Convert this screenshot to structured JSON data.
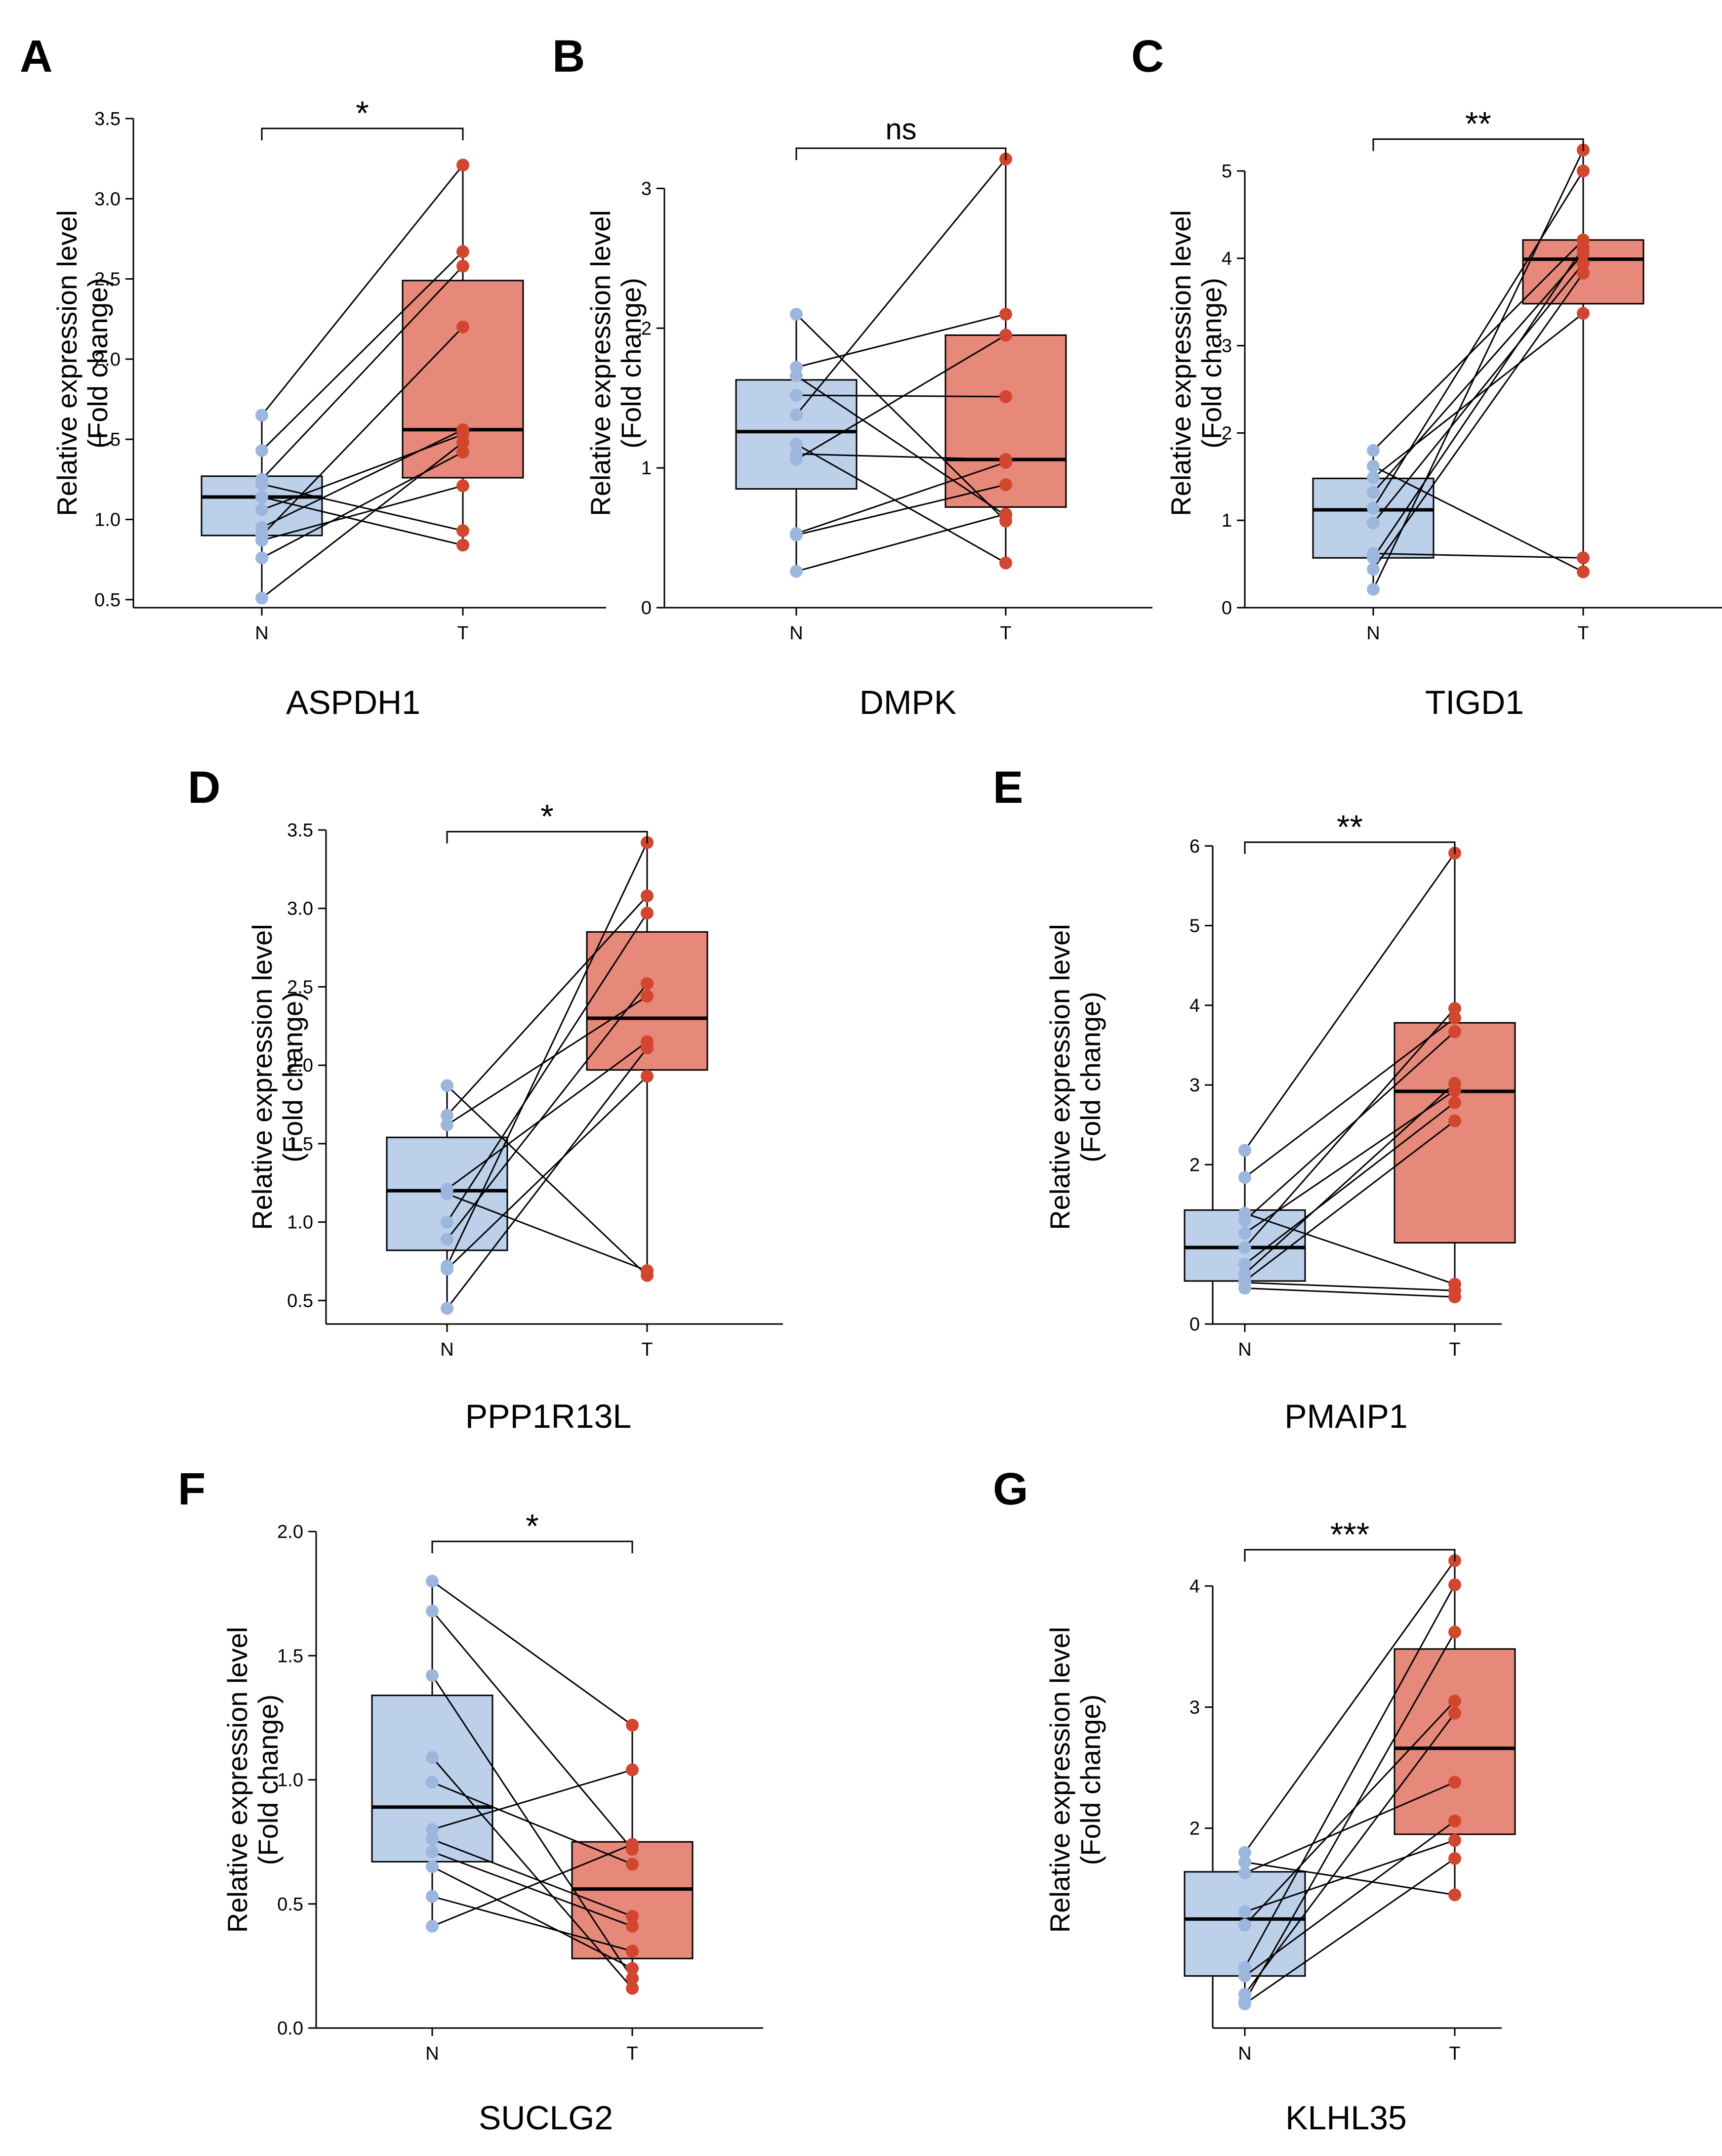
{
  "chart_data": [
    {
      "panel": "A",
      "type": "box",
      "gene": "ASPDH1",
      "ylabel": [
        "Relative expression level",
        "(Fold change)"
      ],
      "categories": [
        "N",
        "T"
      ],
      "significance": "*",
      "ylim": [
        0.45,
        3.5
      ],
      "yticks": [
        0.5,
        1.0,
        1.5,
        2.0,
        2.5,
        3.0,
        3.5
      ],
      "tick_decimals": 1,
      "boxes": [
        {
          "group": "N",
          "q1": 0.9,
          "median": 1.14,
          "q3": 1.27,
          "whisker_low": 0.51,
          "whisker_high": 1.65
        },
        {
          "group": "T",
          "q1": 1.26,
          "median": 1.56,
          "q3": 2.49,
          "whisker_low": 0.84,
          "whisker_high": 3.21
        }
      ],
      "pairs": [
        [
          1.65,
          3.21
        ],
        [
          1.43,
          2.67
        ],
        [
          1.25,
          2.58
        ],
        [
          1.22,
          0.93
        ],
        [
          1.14,
          0.84
        ],
        [
          1.06,
          1.53
        ],
        [
          0.95,
          1.56
        ],
        [
          0.9,
          2.2
        ],
        [
          0.87,
          1.21
        ],
        [
          0.76,
          1.42
        ],
        [
          0.51,
          1.48
        ]
      ]
    },
    {
      "panel": "B",
      "type": "box",
      "gene": "DMPK",
      "ylabel": [
        "Relative expression level",
        "(Fold change)"
      ],
      "categories": [
        "N",
        "T"
      ],
      "significance": "ns",
      "ylim": [
        0.0,
        3.5
      ],
      "yticks": [
        0,
        1,
        2,
        3
      ],
      "tick_decimals": 0,
      "boxes": [
        {
          "group": "N",
          "q1": 0.85,
          "median": 1.26,
          "q3": 1.63,
          "whisker_low": 0.26,
          "whisker_high": 2.1
        },
        {
          "group": "T",
          "q1": 0.72,
          "median": 1.06,
          "q3": 1.95,
          "whisker_low": 0.32,
          "whisker_high": 3.21
        }
      ],
      "pairs": [
        [
          2.1,
          0.62
        ],
        [
          1.72,
          2.1
        ],
        [
          1.66,
          0.66
        ],
        [
          1.52,
          1.51
        ],
        [
          1.38,
          3.21
        ],
        [
          1.17,
          0.32
        ],
        [
          1.1,
          1.06
        ],
        [
          1.06,
          1.95
        ],
        [
          0.53,
          1.04
        ],
        [
          0.52,
          0.88
        ],
        [
          0.26,
          0.67
        ]
      ]
    },
    {
      "panel": "C",
      "type": "box",
      "gene": "TIGD1",
      "ylabel": [
        "Relative expression level",
        "(Fold change)"
      ],
      "categories": [
        "N",
        "T"
      ],
      "significance": "**",
      "ylim": [
        0.0,
        5.6
      ],
      "yticks": [
        0,
        1,
        2,
        3,
        4,
        5
      ],
      "tick_decimals": 0,
      "boxes": [
        {
          "group": "N",
          "q1": 0.57,
          "median": 1.12,
          "q3": 1.48,
          "whisker_low": 0.21,
          "whisker_high": 1.8
        },
        {
          "group": "T",
          "q1": 3.48,
          "median": 3.99,
          "q3": 4.21,
          "whisker_low": 0.41,
          "whisker_high": 5.24
        }
      ],
      "pairs": [
        [
          1.8,
          4.21
        ],
        [
          1.62,
          0.41
        ],
        [
          1.49,
          3.37
        ],
        [
          1.32,
          4.05
        ],
        [
          1.14,
          5.0
        ],
        [
          0.97,
          3.94
        ],
        [
          0.62,
          0.57
        ],
        [
          0.57,
          4.12
        ],
        [
          0.44,
          3.83
        ],
        [
          0.21,
          5.24
        ]
      ]
    },
    {
      "panel": "D",
      "type": "box",
      "gene": "PPP1R13L",
      "ylabel": [
        "Relative expression level",
        "(Fold change)"
      ],
      "categories": [
        "N",
        "T"
      ],
      "significance": "*",
      "ylim": [
        0.35,
        3.5
      ],
      "yticks": [
        0.5,
        1.0,
        1.5,
        2.0,
        2.5,
        3.0,
        3.5
      ],
      "tick_decimals": 1,
      "boxes": [
        {
          "group": "N",
          "q1": 0.82,
          "median": 1.2,
          "q3": 1.54,
          "whisker_low": 0.45,
          "whisker_high": 1.87
        },
        {
          "group": "T",
          "q1": 1.97,
          "median": 2.3,
          "q3": 2.85,
          "whisker_low": 0.66,
          "whisker_high": 3.42
        }
      ],
      "pairs": [
        [
          1.87,
          0.66
        ],
        [
          1.68,
          3.08
        ],
        [
          1.62,
          2.44
        ],
        [
          1.21,
          2.15
        ],
        [
          1.18,
          0.69
        ],
        [
          1.0,
          2.97
        ],
        [
          0.89,
          2.52
        ],
        [
          0.72,
          3.42
        ],
        [
          0.7,
          1.93
        ],
        [
          0.45,
          2.11
        ]
      ]
    },
    {
      "panel": "E",
      "type": "box",
      "gene": "PMAIP1",
      "ylabel": [
        "Relative expression level",
        "(Fold change)"
      ],
      "categories": [
        "N",
        "T"
      ],
      "significance": "**",
      "ylim": [
        0.0,
        6.2
      ],
      "yticks": [
        0,
        1,
        2,
        3,
        4,
        5,
        6
      ],
      "tick_decimals": 0,
      "boxes": [
        {
          "group": "N",
          "q1": 0.54,
          "median": 0.96,
          "q3": 1.43,
          "whisker_low": 0.45,
          "whisker_high": 2.18
        },
        {
          "group": "T",
          "q1": 1.02,
          "median": 2.92,
          "q3": 3.78,
          "whisker_low": 0.34,
          "whisker_high": 5.91
        }
      ],
      "pairs": [
        [
          2.18,
          5.91
        ],
        [
          1.84,
          3.84
        ],
        [
          1.39,
          0.5
        ],
        [
          1.3,
          3.67
        ],
        [
          1.14,
          2.93
        ],
        [
          0.96,
          3.96
        ],
        [
          0.75,
          2.78
        ],
        [
          0.63,
          3.02
        ],
        [
          0.54,
          2.55
        ],
        [
          0.52,
          0.42
        ],
        [
          0.45,
          0.34
        ]
      ]
    },
    {
      "panel": "F",
      "type": "box",
      "gene": "SUCLG2",
      "ylabel": [
        "Relative expression level",
        "(Fold change)"
      ],
      "categories": [
        "N",
        "T"
      ],
      "significance": "*",
      "ylim": [
        0.0,
        2.0
      ],
      "yticks": [
        0.0,
        0.5,
        1.0,
        1.5,
        2.0
      ],
      "tick_decimals": 1,
      "boxes": [
        {
          "group": "N",
          "q1": 0.67,
          "median": 0.89,
          "q3": 1.34,
          "whisker_low": 0.41,
          "whisker_high": 1.8
        },
        {
          "group": "T",
          "q1": 0.28,
          "median": 0.56,
          "q3": 0.75,
          "whisker_low": 0.15,
          "whisker_high": 1.22
        }
      ],
      "pairs": [
        [
          1.8,
          1.22
        ],
        [
          1.68,
          0.72
        ],
        [
          1.42,
          0.2
        ],
        [
          1.09,
          0.16
        ],
        [
          0.99,
          0.66
        ],
        [
          0.8,
          1.04
        ],
        [
          0.76,
          0.45
        ],
        [
          0.71,
          0.41
        ],
        [
          0.65,
          0.24
        ],
        [
          0.53,
          0.31
        ],
        [
          0.41,
          0.74
        ]
      ]
    },
    {
      "panel": "G",
      "type": "box",
      "gene": "KLHL35",
      "ylabel": [
        "Relative expression level",
        "(Fold change)"
      ],
      "categories": [
        "N",
        "T"
      ],
      "significance": "***",
      "ylim": [
        0.35,
        4.45
      ],
      "yticks": [
        1,
        2,
        3,
        4
      ],
      "tick_decimals": 0,
      "boxes": [
        {
          "group": "N",
          "q1": 0.78,
          "median": 1.25,
          "q3": 1.64,
          "whisker_low": 0.55,
          "whisker_high": 1.8
        },
        {
          "group": "T",
          "q1": 1.95,
          "median": 2.66,
          "q3": 3.48,
          "whisker_low": 1.45,
          "whisker_high": 4.21
        }
      ],
      "pairs": [
        [
          1.8,
          4.21
        ],
        [
          1.72,
          1.45
        ],
        [
          1.63,
          2.38
        ],
        [
          1.31,
          1.9
        ],
        [
          1.2,
          3.05
        ],
        [
          0.85,
          4.01
        ],
        [
          0.78,
          2.06
        ],
        [
          0.63,
          2.95
        ],
        [
          0.57,
          3.62
        ],
        [
          0.55,
          1.75
        ]
      ]
    }
  ],
  "colors": {
    "normal_fill": "#bdd0ea",
    "normal_point": "#9cb6de",
    "tumor_fill": "#e6887a",
    "tumor_point": "#d2462f",
    "line": "#000000"
  }
}
